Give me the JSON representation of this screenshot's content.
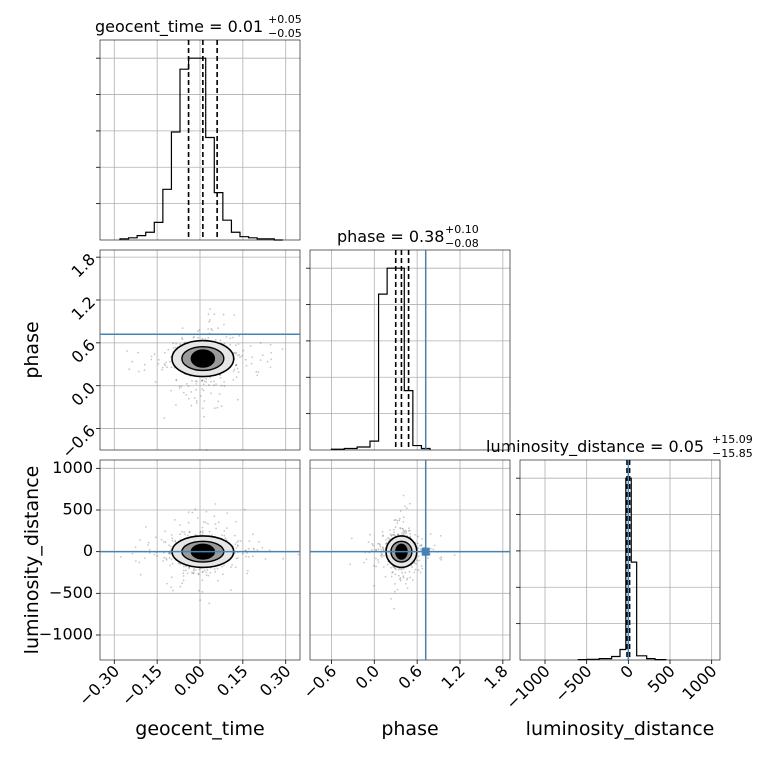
{
  "colors": {
    "truth": "#4682b4",
    "hist": "#000000",
    "grid": "#b0b0b0",
    "density": "#000000"
  },
  "titles": {
    "geocent_time": {
      "name": "geocent_time",
      "value": "0.01",
      "plus": "+0.05",
      "minus": "−0.05"
    },
    "phase": {
      "name": "phase",
      "value": "0.38",
      "plus": "+0.10",
      "minus": "−0.08"
    },
    "luminosity_distance": {
      "name": "luminosity_distance",
      "value": "0.05",
      "plus": "+15.09",
      "minus": "−15.85"
    }
  },
  "chart_data": {
    "type": "corner",
    "parameters": [
      "geocent_time",
      "phase",
      "luminosity_distance"
    ],
    "axis_labels": {
      "x": [
        "geocent_time",
        "phase",
        "luminosity_distance"
      ],
      "y": [
        "phase",
        "luminosity_distance"
      ]
    },
    "ranges": {
      "geocent_time": [
        -0.35,
        0.35
      ],
      "phase": [
        -0.9,
        1.9
      ],
      "luminosity_distance": [
        -1300,
        1100
      ]
    },
    "ticks": {
      "geocent_time": [
        "−0.30",
        "−0.15",
        "0.00",
        "0.15",
        "0.30"
      ],
      "phase": [
        "−0.6",
        "0.0",
        "0.6",
        "1.2",
        "1.8"
      ],
      "luminosity_distance": [
        "−1000",
        "−500",
        "0",
        "500",
        "1000"
      ]
    },
    "tick_values": {
      "geocent_time": [
        -0.3,
        -0.15,
        0.0,
        0.15,
        0.3
      ],
      "phase": [
        -0.6,
        0.0,
        0.6,
        1.2,
        1.8
      ],
      "luminosity_distance": [
        -1000,
        -500,
        0,
        500,
        1000
      ]
    },
    "truths": {
      "geocent_time": null,
      "phase": 0.72,
      "luminosity_distance": 0
    },
    "quantiles": {
      "geocent_time": [
        -0.04,
        0.01,
        0.06
      ],
      "phase": [
        0.3,
        0.38,
        0.48
      ],
      "luminosity_distance": [
        -15.8,
        0.05,
        15.1
      ]
    },
    "histograms": {
      "geocent_time": {
        "edges": [
          -0.28,
          -0.25,
          -0.22,
          -0.19,
          -0.16,
          -0.13,
          -0.1,
          -0.07,
          -0.04,
          -0.01,
          0.02,
          0.05,
          0.08,
          0.11,
          0.14,
          0.17,
          0.2,
          0.23,
          0.26,
          0.29
        ],
        "counts": [
          1,
          2,
          4,
          7,
          16,
          46,
          98,
          155,
          165,
          165,
          93,
          43,
          18,
          7,
          3,
          2,
          1,
          1,
          0
        ]
      },
      "phase": {
        "edges": [
          -0.6,
          -0.42,
          -0.24,
          -0.06,
          0.06,
          0.18,
          0.3,
          0.42,
          0.54,
          0.66,
          0.78
        ],
        "counts": [
          1,
          2,
          4,
          12,
          210,
          245,
          245,
          80,
          6,
          2
        ]
      },
      "luminosity_distance": {
        "edges": [
          -600,
          -500,
          -350,
          -200,
          -100,
          -30,
          35,
          100,
          220,
          320,
          450
        ],
        "counts": [
          1,
          2,
          4,
          10,
          30,
          520,
          280,
          12,
          4,
          1
        ]
      }
    }
  }
}
